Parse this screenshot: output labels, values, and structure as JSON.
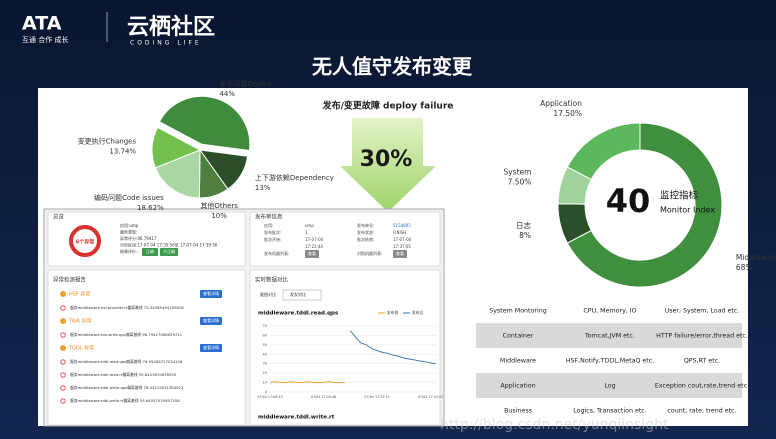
{
  "header": {
    "logo": "ATA",
    "slogan": "互通 合作 成长",
    "brand": "云栖社区",
    "brand_sub": "CODING LIFE"
  },
  "title": "无人值守发布变更",
  "callout": {
    "title": "发布/变更故障 deploy failure",
    "value": "30%"
  },
  "chart_data": [
    {
      "type": "pie",
      "categories": [
        "发布问题Deploy",
        "上下游依赖Dependency",
        "其他Others",
        "编码问题Code issues",
        "变更执行Changes"
      ],
      "values": [
        44,
        13,
        10,
        18.62,
        13.74
      ],
      "value_labels": [
        "44%",
        "13%",
        "10%",
        "18.62%",
        "13.74%"
      ],
      "colors": [
        "#3f8c3c",
        "#2c4f29",
        "#4f7f3e",
        "#a9d6a2",
        "#72c14f"
      ]
    },
    {
      "type": "donut",
      "categories": [
        "Middleware",
        "日志",
        "System",
        "Application"
      ],
      "values": [
        68,
        8,
        7.5,
        17.5
      ],
      "value_labels": [
        "68%",
        "8%",
        "7.50%",
        "17.50%"
      ],
      "colors": [
        "#3f8f3f",
        "#2b4f2b",
        "#9fd39b",
        "#5cb85c"
      ],
      "center_label": [
        "40",
        "监控指标",
        "Monitor Index"
      ]
    },
    {
      "type": "line",
      "title": "middleware.tddl.read.qps",
      "categories": [
        "07/04 17:08:45",
        null,
        null,
        null,
        null,
        null,
        null,
        null,
        null,
        null,
        "07/04 17:20:46",
        null,
        null,
        null,
        null,
        null,
        null,
        null,
        null,
        null,
        "07/04 17:35:15",
        null,
        null,
        null,
        null,
        null,
        null,
        null,
        null,
        null,
        "07/04 17:52:05",
        null
      ],
      "series": [
        {
          "name": "发布前",
          "color": "#f0a030",
          "values": [
            10,
            11,
            10,
            10,
            11,
            10,
            10,
            11,
            10,
            10,
            10,
            11,
            10,
            10,
            10,
            null,
            null,
            null,
            null,
            null,
            null,
            null,
            null,
            null,
            null,
            null,
            null,
            null,
            null,
            null,
            null,
            null
          ]
        },
        {
          "name": "发布后",
          "color": "#3070b0",
          "values": [
            null,
            null,
            null,
            null,
            null,
            null,
            null,
            null,
            null,
            null,
            null,
            null,
            null,
            null,
            null,
            65,
            58,
            52,
            50,
            46,
            44,
            42,
            41,
            39,
            38,
            36,
            35,
            34,
            33,
            32,
            31,
            30
          ]
        }
      ],
      "ylim": [
        0,
        70
      ],
      "yticks": [
        0,
        10,
        20,
        30,
        40,
        50,
        60,
        70
      ],
      "grid": true
    }
  ],
  "table": {
    "rows": [
      [
        "System Montoring",
        "CPU, Memory, IO",
        "User, System, Load etc."
      ],
      [
        "Container",
        "Tomcat,JVM etc.",
        "HTTP failure/error,thread etc."
      ],
      [
        "Middleware",
        "HSF,Notify,TDDL,MetaQ etc.",
        "QPS,RT etc."
      ],
      [
        "Application",
        "Log",
        "Exception cout,rate,trend etc."
      ],
      [
        "Business",
        "Logics, Transaction etc.",
        "count, rate, trend etc."
      ]
    ]
  },
  "dashboard": {
    "overview": {
      "title": "总览",
      "alert": "6个异常",
      "lines": [
        "应用:ump",
        "服务类型:",
        "异常评分:96.79417",
        "分析区间:17-07-04 17:35:56至 17-07-04 17:39:56",
        "结果评价:"
      ],
      "buttons": [
        "正确",
        "不正确"
      ]
    },
    "release": {
      "title": "发布单信息",
      "fields": [
        [
          "应用:",
          "ump",
          "发布单号:",
          "5154893"
        ],
        [
          "发布批次:",
          "1",
          "发布状态:",
          "FINISH"
        ],
        [
          "批次开始:",
          "17-07-04",
          "批次结束:",
          "17-07-04"
        ],
        [
          "17:23:44",
          "17:37:05"
        ],
        [
          "发布机器列表:",
          "查看",
          "对照机器列表:",
          "查看"
        ]
      ]
    },
    "report": {
      "title": "异常检测报告",
      "groups": [
        {
          "name": "HSF 异常",
          "button": "查看详情",
          "items": [
            "服务middleware.hsf.provider.rt偏离基线 75.54385494193828"
          ]
        },
        {
          "name": "TAIR 异常",
          "button": "查看详情",
          "items": [
            "服务middleware.tair.write.qps偏离基线 96.79417068929711"
          ]
        },
        {
          "name": "TDDL 异常",
          "button": "查看详情",
          "items": [
            "服务middleware.tddl.read.qps偏离基线 76.55269727034106",
            "服务middleware.tddl.read.rt偏离基线 55.6423870678593",
            "服务middleware.tddl.write.qps偏离基线 76.44219531364923",
            "服务middleware.tddl.write.rt偏离基线 55.64057535957258"
          ]
        }
      ]
    },
    "realtime": {
      "title": "实时数据对比",
      "tabs": [
        "截图对比",
        "发发对比"
      ],
      "chart2_title": "middleware.tddl.write.rt"
    }
  },
  "watermark": "http://blog.csdn.net/yunqiinsight"
}
